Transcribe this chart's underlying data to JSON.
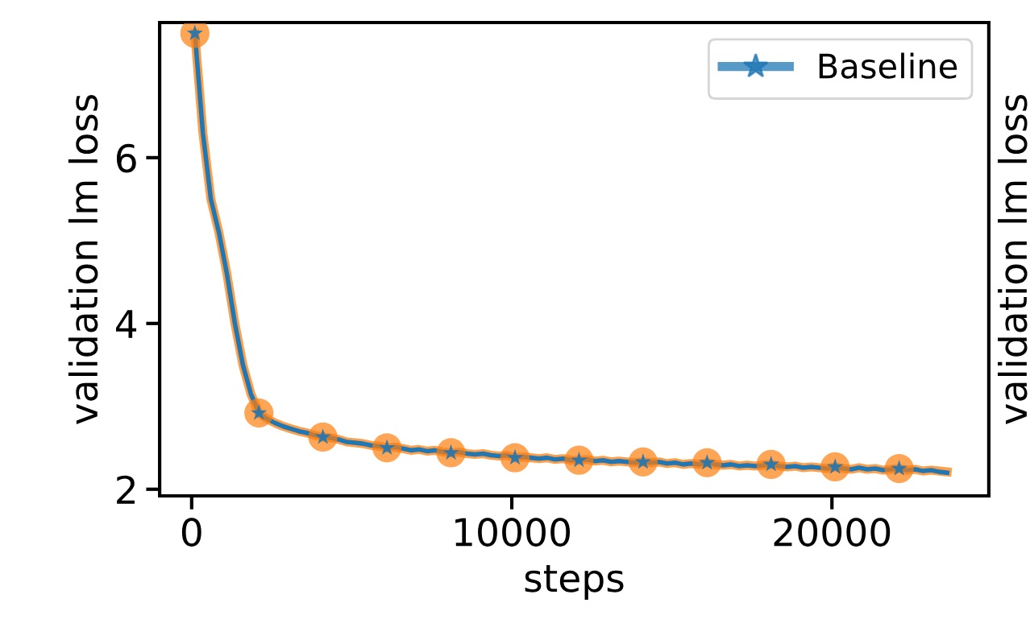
{
  "chart_data": {
    "type": "line",
    "xlabel": "steps",
    "ylabel": "validation lm loss",
    "y2label": "validation lm loss",
    "x": [
      100,
      350,
      600,
      850,
      1100,
      1350,
      1600,
      1850,
      2100,
      2350,
      2600,
      2850,
      3100,
      3350,
      3600,
      3850,
      4100,
      4350,
      4600,
      4850,
      5100,
      5350,
      5600,
      5850,
      6100,
      6350,
      6600,
      6850,
      7100,
      7350,
      7600,
      7850,
      8100,
      8350,
      8600,
      8850,
      9100,
      9350,
      9600,
      9850,
      10100,
      10350,
      10600,
      10850,
      11100,
      11350,
      11600,
      11850,
      12100,
      12350,
      12600,
      12850,
      13100,
      13350,
      13600,
      13850,
      14100,
      14350,
      14600,
      14850,
      15100,
      15350,
      15600,
      15850,
      16100,
      16350,
      16600,
      16850,
      17100,
      17350,
      17600,
      17850,
      18100,
      18350,
      18600,
      18850,
      19100,
      19350,
      19600,
      19850,
      20100,
      20350,
      20600,
      20850,
      21100,
      21350,
      21600,
      21850,
      22100,
      22350,
      22600,
      22850,
      23100,
      23350,
      23600
    ],
    "series": [
      {
        "name": "Baseline",
        "color": "#1f77b4",
        "values": [
          7.5,
          6.3,
          5.5,
          5.1,
          4.6,
          4.0,
          3.5,
          3.15,
          2.92,
          2.85,
          2.8,
          2.76,
          2.73,
          2.7,
          2.68,
          2.65,
          2.63,
          2.62,
          2.6,
          2.57,
          2.56,
          2.55,
          2.53,
          2.52,
          2.5,
          2.51,
          2.49,
          2.47,
          2.48,
          2.46,
          2.47,
          2.45,
          2.44,
          2.45,
          2.43,
          2.42,
          2.43,
          2.41,
          2.4,
          2.41,
          2.38,
          2.39,
          2.38,
          2.37,
          2.38,
          2.36,
          2.37,
          2.35,
          2.35,
          2.36,
          2.34,
          2.35,
          2.33,
          2.34,
          2.33,
          2.32,
          2.33,
          2.32,
          2.33,
          2.31,
          2.32,
          2.3,
          2.31,
          2.3,
          2.32,
          2.3,
          2.29,
          2.3,
          2.28,
          2.29,
          2.28,
          2.29,
          2.3,
          2.28,
          2.27,
          2.28,
          2.26,
          2.27,
          2.26,
          2.25,
          2.27,
          2.25,
          2.24,
          2.26,
          2.24,
          2.25,
          2.23,
          2.24,
          2.25,
          2.23,
          2.24,
          2.22,
          2.23,
          2.21,
          2.2
        ]
      },
      {
        "color": "#ff7f0e",
        "values": [
          7.5,
          6.3,
          5.5,
          5.1,
          4.6,
          4.0,
          3.5,
          3.15,
          2.92,
          2.85,
          2.8,
          2.76,
          2.73,
          2.7,
          2.68,
          2.65,
          2.63,
          2.62,
          2.6,
          2.57,
          2.56,
          2.55,
          2.53,
          2.52,
          2.5,
          2.51,
          2.49,
          2.47,
          2.48,
          2.46,
          2.47,
          2.45,
          2.44,
          2.45,
          2.43,
          2.42,
          2.43,
          2.41,
          2.4,
          2.41,
          2.38,
          2.39,
          2.38,
          2.37,
          2.38,
          2.36,
          2.37,
          2.35,
          2.35,
          2.36,
          2.34,
          2.35,
          2.33,
          2.34,
          2.33,
          2.32,
          2.33,
          2.32,
          2.33,
          2.31,
          2.32,
          2.3,
          2.31,
          2.3,
          2.32,
          2.3,
          2.29,
          2.3,
          2.28,
          2.29,
          2.28,
          2.29,
          2.3,
          2.28,
          2.27,
          2.28,
          2.26,
          2.27,
          2.26,
          2.25,
          2.27,
          2.25,
          2.24,
          2.26,
          2.24,
          2.25,
          2.23,
          2.24,
          2.25,
          2.23,
          2.24,
          2.22,
          2.23,
          2.22,
          2.21
        ]
      },
      {
        "type": "scatter",
        "color": "#ff7f0e",
        "marker": "circle",
        "x": [
          100,
          2100,
          4100,
          6100,
          8100,
          10100,
          12100,
          14100,
          16100,
          18100,
          20100,
          22100
        ],
        "values": [
          7.5,
          2.92,
          2.63,
          2.5,
          2.44,
          2.38,
          2.35,
          2.33,
          2.32,
          2.3,
          2.27,
          2.25
        ]
      },
      {
        "type": "scatter",
        "color": "#1f77b4",
        "marker": "star",
        "x": [
          100,
          2100,
          4100,
          6100,
          8100,
          10100,
          12100,
          14100,
          16100,
          18100,
          20100,
          22100
        ],
        "values": [
          7.5,
          2.92,
          2.63,
          2.5,
          2.44,
          2.38,
          2.35,
          2.33,
          2.32,
          2.3,
          2.27,
          2.25
        ]
      }
    ],
    "xlim": [
      -1000,
      24900
    ],
    "xticks": [
      0,
      10000,
      20000
    ],
    "ylim": [
      1.92,
      7.63
    ],
    "yticks": [
      2,
      4,
      6
    ],
    "legend": "top right",
    "grid": false
  }
}
